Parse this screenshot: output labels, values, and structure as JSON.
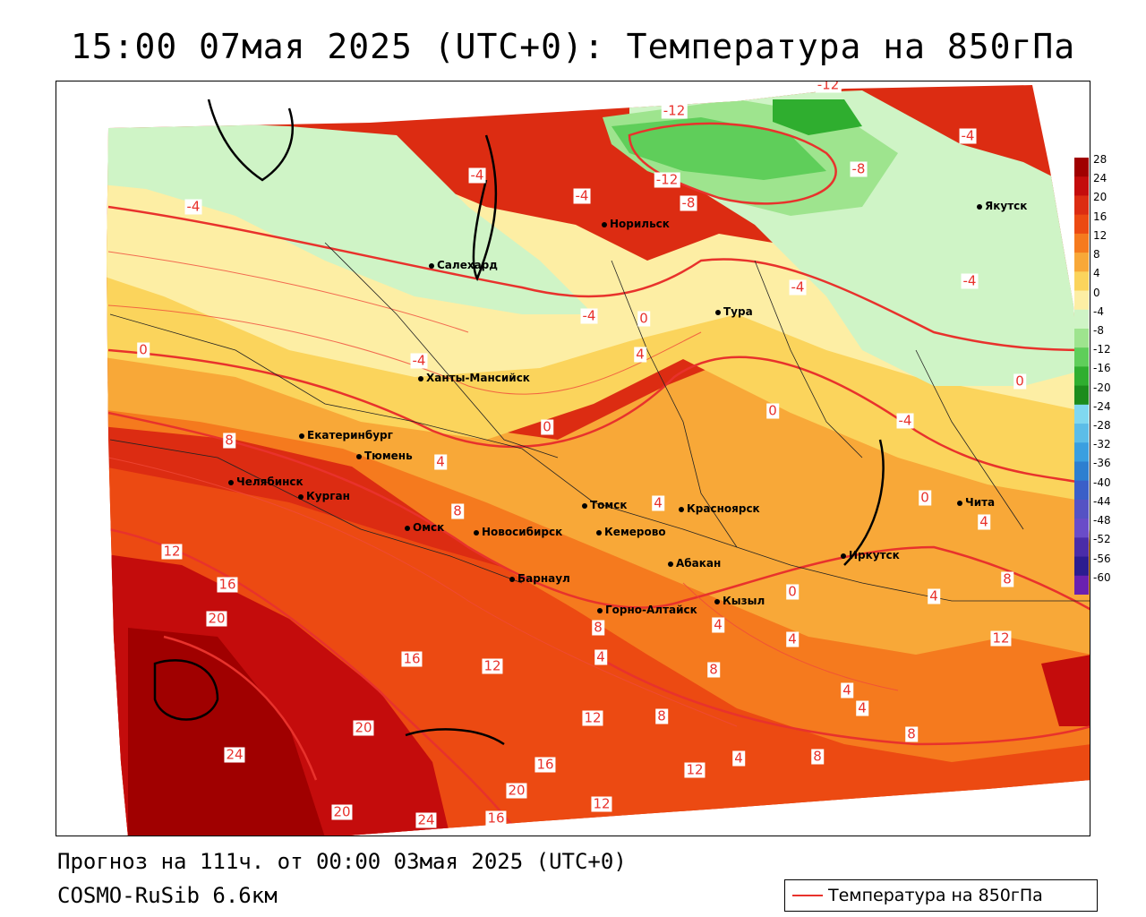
{
  "title": "15:00 07мая 2025 (UTC+0): Температура на 850гПа",
  "footer": {
    "forecast": "Прогноз на 111ч. от 00:00 03мая 2025 (UTC+0)",
    "model": "COSMO-RuSib 6.6км"
  },
  "key": {
    "label": "Температура на 850гПа",
    "line_color": "#e8322c"
  },
  "legend": {
    "ticks": [
      "28",
      "24",
      "20",
      "16",
      "12",
      "8",
      "4",
      "0",
      "-4",
      "-8",
      "-12",
      "-16",
      "-20",
      "-24",
      "-28",
      "-32",
      "-36",
      "-40",
      "-44",
      "-48",
      "-52",
      "-56",
      "-60"
    ],
    "colors": [
      "#a00000",
      "#c40c0c",
      "#dc2c12",
      "#ec4a12",
      "#f57a1e",
      "#f8a838",
      "#fbd45c",
      "#fdeea4",
      "#cff4c6",
      "#9ee48e",
      "#5fce5a",
      "#2fae2f",
      "#1c8c1c",
      "#80d8f0",
      "#5cbde8",
      "#3a9fe0",
      "#2d7fd0",
      "#3a5fc8",
      "#5552c4",
      "#6a4cc8",
      "#4a2ca8",
      "#2c1c90",
      "#6a20b0"
    ]
  },
  "cities": [
    {
      "name": "Салехард"
    },
    {
      "name": "Норильск"
    },
    {
      "name": "Якутск"
    },
    {
      "name": "Тура"
    },
    {
      "name": "Ханты-Мансийск"
    },
    {
      "name": "Екатеринбург"
    },
    {
      "name": "Тюмень"
    },
    {
      "name": "Челябинск"
    },
    {
      "name": "Курган"
    },
    {
      "name": "Омск"
    },
    {
      "name": "Новосибирск"
    },
    {
      "name": "Томск"
    },
    {
      "name": "Кемерово"
    },
    {
      "name": "Красноярск"
    },
    {
      "name": "Барнаул"
    },
    {
      "name": "Абакан"
    },
    {
      "name": "Горно-Алтайск"
    },
    {
      "name": "Кызыл"
    },
    {
      "name": "Иркутск"
    },
    {
      "name": "Чита"
    }
  ],
  "contour_labels": [
    "-12",
    "-12",
    "-12",
    "-8",
    "-8",
    "-4",
    "-4",
    "-4",
    "-4",
    "-4",
    "-4",
    "-4",
    "-4",
    "-4",
    "0",
    "0",
    "0",
    "0",
    "0",
    "0",
    "0",
    "4",
    "4",
    "4",
    "4",
    "4",
    "4",
    "4",
    "4",
    "4",
    "4",
    "4",
    "8",
    "8",
    "8",
    "8",
    "8",
    "8",
    "8",
    "8",
    "12",
    "12",
    "12",
    "12",
    "12",
    "12",
    "12",
    "16",
    "16",
    "16",
    "16",
    "20",
    "20",
    "20",
    "20",
    "24",
    "24"
  ]
}
